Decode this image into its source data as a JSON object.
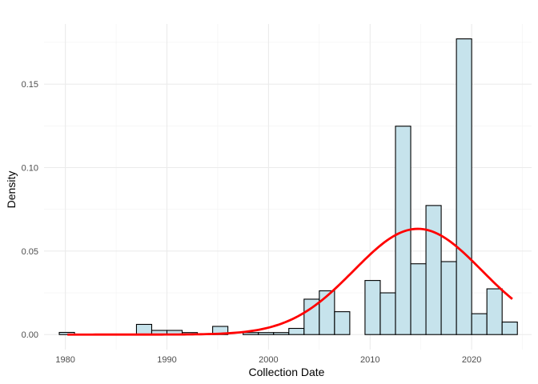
{
  "chart_data": {
    "type": "bar",
    "subtype": "histogram-with-density",
    "xlabel": "Collection Date",
    "ylabel": "Density",
    "xlim": [
      1977.9,
      2025.9
    ],
    "ylim": [
      -0.009,
      0.186
    ],
    "x_major_ticks": [
      1980,
      1990,
      2000,
      2010,
      2020
    ],
    "x_tick_labels": [
      "1980",
      "1990",
      "2000",
      "2010",
      "2020"
    ],
    "y_major_ticks": [
      0.0,
      0.05,
      0.1,
      0.15
    ],
    "y_tick_labels": [
      "0.00",
      "0.05",
      "0.10",
      "0.15"
    ],
    "grid": true,
    "legend": "none",
    "bin_width": 1.5,
    "bins": [
      {
        "x_start": 1979.4,
        "x_end": 1980.9,
        "density": 0.0013
      },
      {
        "x_start": 1987.0,
        "x_end": 1988.5,
        "density": 0.0061
      },
      {
        "x_start": 1988.5,
        "x_end": 1990.0,
        "density": 0.0025
      },
      {
        "x_start": 1990.0,
        "x_end": 1991.5,
        "density": 0.0025
      },
      {
        "x_start": 1991.5,
        "x_end": 1993.0,
        "density": 0.0012
      },
      {
        "x_start": 1994.5,
        "x_end": 1996.0,
        "density": 0.0049
      },
      {
        "x_start": 1997.5,
        "x_end": 1999.0,
        "density": 0.0012
      },
      {
        "x_start": 1999.0,
        "x_end": 2000.5,
        "density": 0.0012
      },
      {
        "x_start": 2000.5,
        "x_end": 2002.0,
        "density": 0.0012
      },
      {
        "x_start": 2002.0,
        "x_end": 2003.5,
        "density": 0.0037
      },
      {
        "x_start": 2003.5,
        "x_end": 2005.0,
        "density": 0.0212
      },
      {
        "x_start": 2005.0,
        "x_end": 2006.5,
        "density": 0.0262
      },
      {
        "x_start": 2006.5,
        "x_end": 2008.0,
        "density": 0.0137
      },
      {
        "x_start": 2009.5,
        "x_end": 2011.0,
        "density": 0.0324
      },
      {
        "x_start": 2011.0,
        "x_end": 2012.5,
        "density": 0.025
      },
      {
        "x_start": 2012.5,
        "x_end": 2014.0,
        "density": 0.1248
      },
      {
        "x_start": 2014.0,
        "x_end": 2015.5,
        "density": 0.0424
      },
      {
        "x_start": 2015.5,
        "x_end": 2017.0,
        "density": 0.0773
      },
      {
        "x_start": 2017.0,
        "x_end": 2018.5,
        "density": 0.0437
      },
      {
        "x_start": 2018.5,
        "x_end": 2020.0,
        "density": 0.1771
      },
      {
        "x_start": 2020.0,
        "x_end": 2021.5,
        "density": 0.0125
      },
      {
        "x_start": 2021.5,
        "x_end": 2023.0,
        "density": 0.0274
      },
      {
        "x_start": 2023.0,
        "x_end": 2024.5,
        "density": 0.0075
      }
    ],
    "density_curve": {
      "distribution": "normal",
      "mean": 2014.7,
      "sd": 6.3,
      "x_range": [
        1980.2,
        2024.0
      ]
    },
    "colors": {
      "bar_fill": "#c6e3ec",
      "bar_outline": "#000000",
      "density_line": "#ff0000"
    }
  }
}
